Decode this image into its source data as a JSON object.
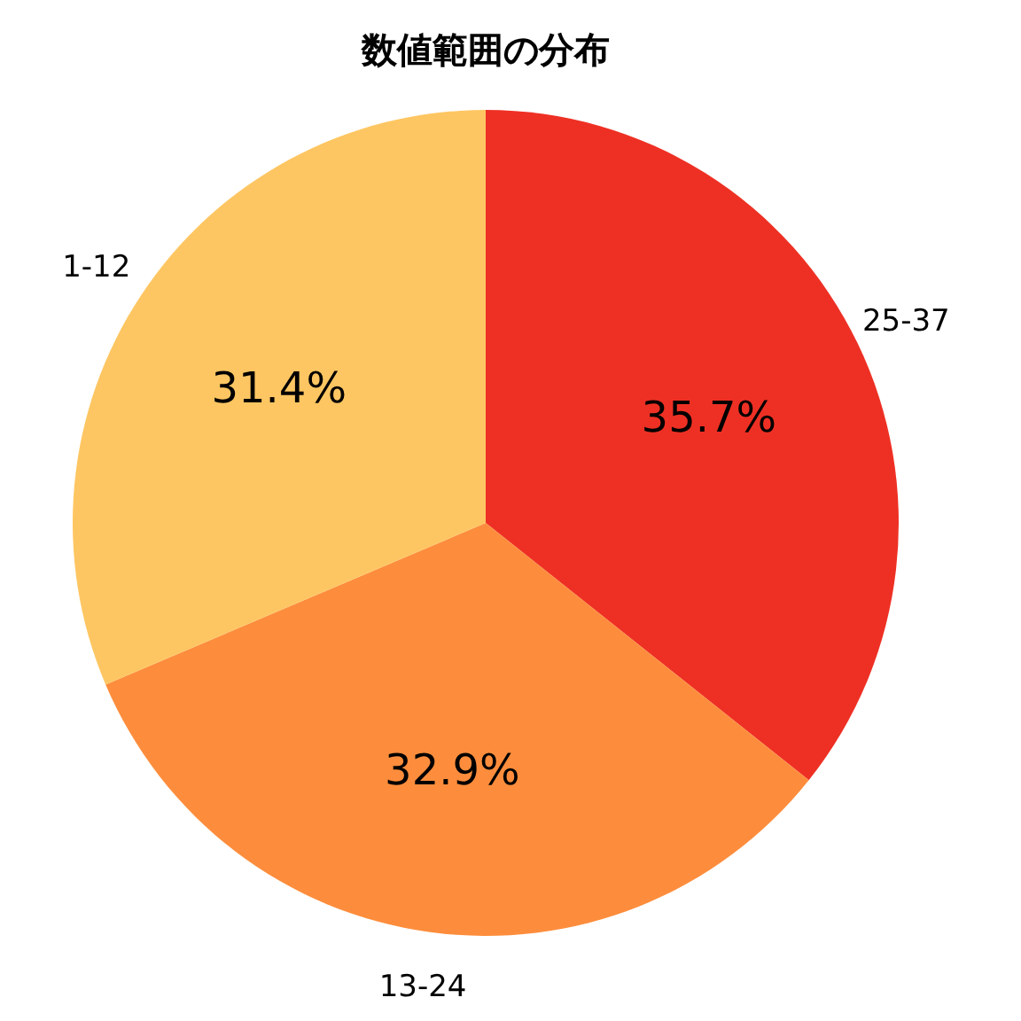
{
  "chart_data": {
    "type": "pie",
    "title": "数値範囲の分布",
    "categories": [
      "25-37",
      "13-24",
      "1-12"
    ],
    "values": [
      35.7,
      32.9,
      31.4
    ],
    "value_labels": [
      "35.7%",
      "32.9%",
      "31.4%"
    ],
    "colors": [
      "#ee3024",
      "#fd8d3c",
      "#fec662"
    ]
  }
}
